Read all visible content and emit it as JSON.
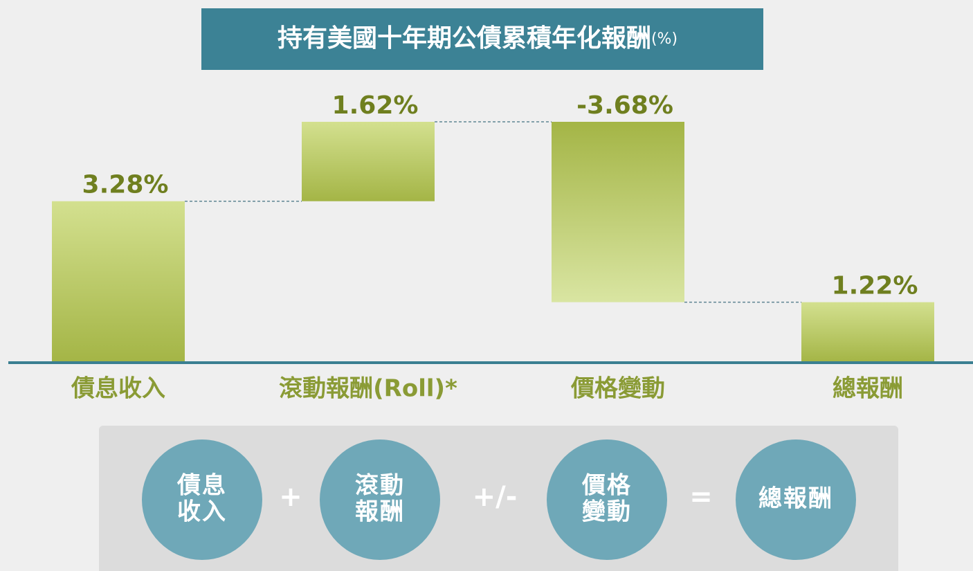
{
  "chart_data": {
    "type": "waterfall",
    "title": "持有美國十年期公債累積年化報酬",
    "title_unit": "(%)",
    "categories": [
      "債息收入",
      "滾動報酬(Roll)*",
      "價格變動",
      "總報酬"
    ],
    "values": [
      3.28,
      1.62,
      -3.68,
      1.22
    ],
    "value_labels": [
      "3.28%",
      "1.62%",
      "-3.68%",
      "1.22%"
    ],
    "is_total": [
      false,
      false,
      false,
      true
    ]
  },
  "formula": {
    "items": [
      [
        "債息",
        "收入"
      ],
      [
        "滾動",
        "報酬"
      ],
      [
        "價格",
        "變動"
      ],
      [
        "總報酬"
      ]
    ],
    "operators": [
      "+",
      "+/-",
      "="
    ]
  }
}
